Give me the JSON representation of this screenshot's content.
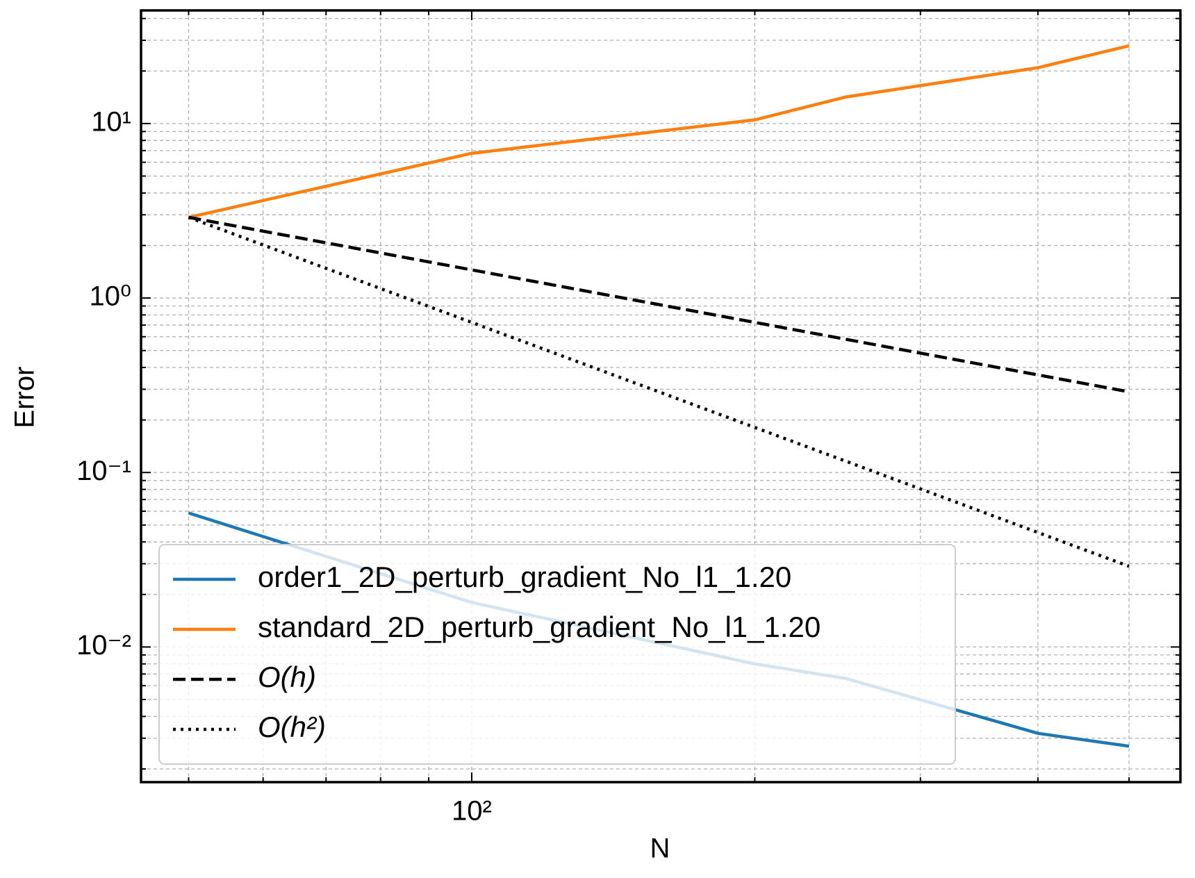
{
  "chart_data": {
    "type": "line",
    "xlabel": "N",
    "ylabel": "Error",
    "xscale": "log",
    "yscale": "log",
    "grid": true,
    "legend_loc": "lower left",
    "x": [
      50,
      100,
      200,
      250,
      400,
      500
    ],
    "series": [
      {
        "name": "order1_2D_perturb_gradient_No_l1_1.20",
        "color": "#1f77b4",
        "linestyle": "solid",
        "values": [
          0.0586,
          0.018,
          0.008,
          0.0066,
          0.0032,
          0.0027
        ]
      },
      {
        "name": "standard_2D_perturb_gradient_No_l1_1.20",
        "color": "#ff7f0e",
        "linestyle": "solid",
        "values": [
          2.9,
          6.75,
          10.5,
          14.2,
          20.9,
          27.9
        ]
      },
      {
        "name": "O(h)",
        "color": "#000000",
        "linestyle": "dashed",
        "values": [
          2.9,
          1.45,
          0.725,
          0.58,
          0.3625,
          0.29
        ]
      },
      {
        "name": "O(h²)",
        "color": "#000000",
        "linestyle": "dotted",
        "values": [
          2.9,
          0.725,
          0.18125,
          0.116,
          0.0453,
          0.029
        ]
      }
    ],
    "xlim": [
      44.5,
      567
    ],
    "ylim": [
      0.00168,
      44.5
    ],
    "xticks": [
      {
        "value": 100,
        "label": "10²"
      }
    ],
    "xminorticks": [
      50,
      60,
      70,
      80,
      90,
      200,
      300,
      400,
      500
    ],
    "yticks": [
      {
        "value": 0.01,
        "label": "10⁻²"
      },
      {
        "value": 0.1,
        "label": "10⁻¹"
      },
      {
        "value": 1,
        "label": "10⁰"
      },
      {
        "value": 10,
        "label": "10¹"
      }
    ],
    "yminorticks": [
      0.002,
      0.003,
      0.004,
      0.005,
      0.006,
      0.007,
      0.008,
      0.009,
      0.02,
      0.03,
      0.04,
      0.05,
      0.06,
      0.07,
      0.08,
      0.09,
      0.2,
      0.3,
      0.4,
      0.5,
      0.6,
      0.7,
      0.8,
      0.9,
      2,
      3,
      4,
      5,
      6,
      7,
      8,
      9,
      20,
      30,
      40
    ]
  }
}
